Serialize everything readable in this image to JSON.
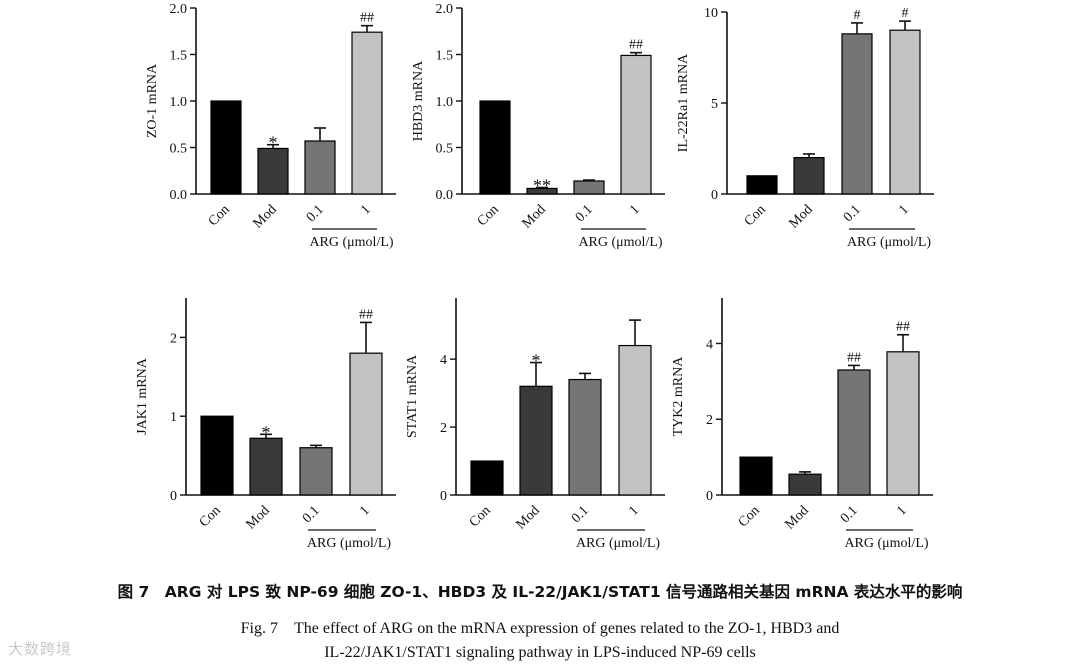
{
  "chart_data": [
    {
      "type": "bar",
      "ylabel": "ZO-1 mRNA",
      "categories": [
        "Con",
        "Mod",
        "0.1",
        "1"
      ],
      "values": [
        1.0,
        0.49,
        0.57,
        1.74
      ],
      "errors": [
        0,
        0.04,
        0.14,
        0.07
      ],
      "marks": [
        "",
        "*",
        "",
        "##"
      ],
      "ylim": [
        0,
        2.0
      ],
      "yticks": [
        0,
        0.5,
        1.0,
        1.5,
        2.0
      ],
      "ytick_labels": [
        "0.0",
        "0.5",
        "1.0",
        "1.5",
        "2.0"
      ],
      "group_label": "ARG (μmol/L)"
    },
    {
      "type": "bar",
      "ylabel": "HBD3 mRNA",
      "categories": [
        "Con",
        "Mod",
        "0.1",
        "1"
      ],
      "values": [
        1.0,
        0.06,
        0.14,
        1.49
      ],
      "errors": [
        0,
        0.01,
        0.01,
        0.03
      ],
      "marks": [
        "",
        "**",
        "",
        "##"
      ],
      "ylim": [
        0,
        2.0
      ],
      "yticks": [
        0,
        0.5,
        1.0,
        1.5,
        2.0
      ],
      "ytick_labels": [
        "0.0",
        "0.5",
        "1.0",
        "1.5",
        "2.0"
      ],
      "group_label": "ARG (μmol/L)"
    },
    {
      "type": "bar",
      "ylabel": "IL-22Ra1 mRNA",
      "categories": [
        "Con",
        "Mod",
        "0.1",
        "1"
      ],
      "values": [
        1.0,
        2.0,
        8.8,
        9.0
      ],
      "errors": [
        0,
        0.2,
        0.6,
        0.5
      ],
      "marks": [
        "",
        "",
        "#",
        "#"
      ],
      "ylim": [
        0,
        10
      ],
      "yticks": [
        0,
        5,
        10
      ],
      "ytick_labels": [
        "0",
        "5",
        "10"
      ],
      "group_label": "ARG (μmol/L)"
    },
    {
      "type": "bar",
      "ylabel": "JAK1 mRNA",
      "categories": [
        "Con",
        "Mod",
        "0.1",
        "1"
      ],
      "values": [
        1.0,
        0.72,
        0.6,
        1.8
      ],
      "errors": [
        0,
        0.05,
        0.03,
        0.39
      ],
      "marks": [
        "",
        "*",
        "",
        "##"
      ],
      "ylim": [
        0,
        2.5
      ],
      "yticks": [
        0,
        1,
        2
      ],
      "ytick_labels": [
        "0",
        "1",
        "2"
      ],
      "group_label": "ARG (μmol/L)"
    },
    {
      "type": "bar",
      "ylabel": "STAT1 mRNA",
      "categories": [
        "Con",
        "Mod",
        "0.1",
        "1"
      ],
      "values": [
        1.0,
        3.2,
        3.4,
        4.4
      ],
      "errors": [
        0,
        0.7,
        0.18,
        0.75
      ],
      "marks": [
        "",
        "*",
        "",
        ""
      ],
      "ylim": [
        0,
        5.8
      ],
      "yticks": [
        0,
        2,
        4
      ],
      "ytick_labels": [
        "0",
        "2",
        "4"
      ],
      "group_label": "ARG (μmol/L)"
    },
    {
      "type": "bar",
      "ylabel": "TYK2 mRNA",
      "categories": [
        "Con",
        "Mod",
        "0.1",
        "1"
      ],
      "values": [
        1.0,
        0.55,
        3.3,
        3.78
      ],
      "errors": [
        0,
        0.06,
        0.12,
        0.45
      ],
      "marks": [
        "",
        "",
        "##",
        "##"
      ],
      "ylim": [
        0,
        5.2
      ],
      "yticks": [
        0,
        2,
        4
      ],
      "ytick_labels": [
        "0",
        "2",
        "4"
      ],
      "group_label": "ARG (μmol/L)"
    }
  ],
  "caption": {
    "cn": "图 7　ARG 对 LPS 致 NP-69 细胞 ZO-1、HBD3 及 IL-22/JAK1/STAT1 信号通路相关基因 mRNA 表达水平的影响",
    "en_line1": "Fig. 7　The effect of ARG on the mRNA expression of genes related to the ZO-1, HBD3 and",
    "en_line2": "IL-22/JAK1/STAT1 signaling pathway in LPS-induced NP-69 cells"
  },
  "watermark": "大数跨境",
  "colors": [
    "#000000",
    "#3a3a3a",
    "#757575",
    "#c2c2c2"
  ]
}
